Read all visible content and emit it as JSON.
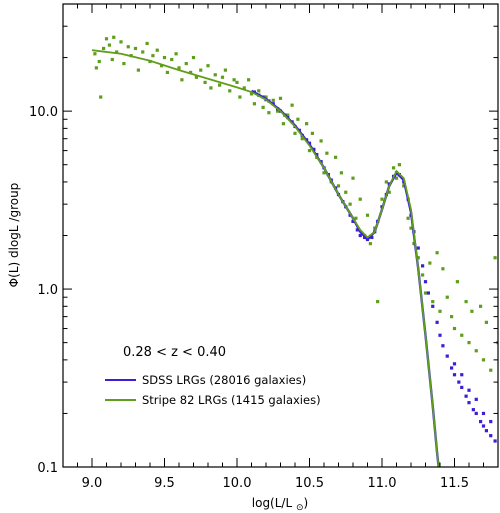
{
  "chart_data": {
    "type": "scatter",
    "xlabel": "log(L/L⊙)",
    "ylabel": "Φ(L) dlogL /group",
    "xlim": [
      8.8,
      11.8
    ],
    "ylim": [
      0.1,
      40
    ],
    "yscale": "log",
    "x_ticks": [
      9.0,
      9.5,
      10.0,
      10.5,
      11.0,
      11.5
    ],
    "x_tick_labels": [
      "9.0",
      "9.5",
      "10.0",
      "10.5",
      "11.0",
      "11.5"
    ],
    "y_ticks": [
      0.1,
      1.0,
      10.0
    ],
    "y_tick_labels": [
      "0.1",
      "1.0",
      "10.0"
    ],
    "annotation": "0.28 < z < 0.40",
    "grid": false,
    "legend_position": "lower-left",
    "colors": {
      "sdss": "#3a1fd6",
      "stripe82": "#5f9e1c"
    },
    "series": [
      {
        "name": "SDSS LRGs (28016 galaxies)",
        "color": "#3a1fd6",
        "points": [
          [
            10.12,
            12.8
          ],
          [
            10.15,
            12.3
          ],
          [
            10.18,
            12.0
          ],
          [
            10.2,
            11.6
          ],
          [
            10.22,
            11.4
          ],
          [
            10.25,
            11.0
          ],
          [
            10.28,
            10.3
          ],
          [
            10.3,
            10.0
          ],
          [
            10.33,
            9.5
          ],
          [
            10.35,
            9.2
          ],
          [
            10.38,
            8.7
          ],
          [
            10.4,
            8.2
          ],
          [
            10.43,
            7.8
          ],
          [
            10.45,
            7.3
          ],
          [
            10.48,
            6.9
          ],
          [
            10.5,
            6.6
          ],
          [
            10.53,
            6.1
          ],
          [
            10.55,
            5.7
          ],
          [
            10.58,
            5.2
          ],
          [
            10.6,
            4.8
          ],
          [
            10.63,
            4.4
          ],
          [
            10.65,
            4.1
          ],
          [
            10.68,
            3.7
          ],
          [
            10.7,
            3.4
          ],
          [
            10.73,
            3.1
          ],
          [
            10.75,
            2.9
          ],
          [
            10.78,
            2.6
          ],
          [
            10.8,
            2.4
          ],
          [
            10.83,
            2.15
          ],
          [
            10.85,
            2.0
          ],
          [
            10.88,
            1.95
          ],
          [
            10.9,
            1.9
          ],
          [
            10.93,
            1.95
          ],
          [
            10.95,
            2.1
          ],
          [
            10.97,
            2.4
          ],
          [
            11.0,
            2.9
          ],
          [
            11.03,
            3.4
          ],
          [
            11.05,
            3.9
          ],
          [
            11.08,
            4.3
          ],
          [
            11.1,
            4.5
          ],
          [
            11.12,
            4.4
          ],
          [
            11.15,
            4.0
          ],
          [
            11.18,
            3.2
          ],
          [
            11.2,
            2.6
          ],
          [
            11.22,
            2.1
          ],
          [
            11.25,
            1.7
          ],
          [
            11.28,
            1.35
          ],
          [
            11.3,
            1.1
          ],
          [
            11.32,
            0.95
          ],
          [
            11.35,
            0.8
          ],
          [
            11.38,
            0.65
          ],
          [
            11.4,
            0.55
          ],
          [
            11.42,
            0.48
          ],
          [
            11.45,
            0.42
          ],
          [
            11.48,
            0.36
          ],
          [
            11.5,
            0.33
          ],
          [
            11.53,
            0.3
          ],
          [
            11.55,
            0.28
          ],
          [
            11.58,
            0.25
          ],
          [
            11.6,
            0.23
          ],
          [
            11.63,
            0.21
          ],
          [
            11.65,
            0.2
          ],
          [
            11.68,
            0.18
          ],
          [
            11.7,
            0.17
          ],
          [
            11.72,
            0.16
          ],
          [
            11.75,
            0.15
          ],
          [
            11.78,
            0.14
          ],
          [
            11.5,
            0.38
          ],
          [
            11.55,
            0.33
          ],
          [
            11.6,
            0.27
          ],
          [
            11.65,
            0.24
          ],
          [
            11.7,
            0.2
          ],
          [
            11.75,
            0.18
          ]
        ],
        "fit": [
          [
            10.1,
            13.0
          ],
          [
            10.2,
            11.7
          ],
          [
            10.3,
            10.1
          ],
          [
            10.4,
            8.3
          ],
          [
            10.5,
            6.5
          ],
          [
            10.6,
            4.8
          ],
          [
            10.7,
            3.4
          ],
          [
            10.8,
            2.5
          ],
          [
            10.85,
            2.1
          ],
          [
            10.9,
            1.9
          ],
          [
            10.95,
            2.1
          ],
          [
            11.0,
            2.8
          ],
          [
            11.05,
            3.8
          ],
          [
            11.1,
            4.5
          ],
          [
            11.15,
            4.1
          ],
          [
            11.2,
            2.7
          ],
          [
            11.25,
            1.3
          ],
          [
            11.3,
            0.55
          ],
          [
            11.35,
            0.22
          ],
          [
            11.38,
            0.12
          ],
          [
            11.4,
            0.085
          ]
        ]
      },
      {
        "name": "Stripe 82 LRGs (1415 galaxies)",
        "color": "#5f9e1c",
        "points": [
          [
            9.02,
            21.0
          ],
          [
            9.03,
            17.5
          ],
          [
            9.05,
            19.0
          ],
          [
            9.06,
            12.0
          ],
          [
            9.08,
            22.5
          ],
          [
            9.1,
            25.5
          ],
          [
            9.12,
            23.5
          ],
          [
            9.14,
            19.5
          ],
          [
            9.15,
            26.0
          ],
          [
            9.17,
            21.5
          ],
          [
            9.2,
            24.5
          ],
          [
            9.22,
            18.5
          ],
          [
            9.25,
            23.0
          ],
          [
            9.27,
            20.5
          ],
          [
            9.3,
            22.5
          ],
          [
            9.32,
            17.0
          ],
          [
            9.35,
            21.5
          ],
          [
            9.38,
            24.0
          ],
          [
            9.4,
            19.0
          ],
          [
            9.42,
            20.5
          ],
          [
            9.45,
            22.0
          ],
          [
            9.48,
            18.0
          ],
          [
            9.5,
            20.0
          ],
          [
            9.52,
            16.5
          ],
          [
            9.55,
            19.5
          ],
          [
            9.58,
            21.0
          ],
          [
            9.6,
            17.5
          ],
          [
            9.62,
            15.0
          ],
          [
            9.65,
            18.5
          ],
          [
            9.68,
            16.5
          ],
          [
            9.7,
            20.0
          ],
          [
            9.72,
            15.5
          ],
          [
            9.75,
            17.0
          ],
          [
            9.78,
            14.5
          ],
          [
            9.8,
            18.0
          ],
          [
            9.82,
            13.5
          ],
          [
            9.85,
            16.0
          ],
          [
            9.88,
            14.0
          ],
          [
            9.9,
            15.5
          ],
          [
            9.92,
            17.0
          ],
          [
            9.95,
            13.0
          ],
          [
            9.98,
            15.0
          ],
          [
            10.0,
            14.5
          ],
          [
            10.02,
            12.0
          ],
          [
            10.05,
            13.5
          ],
          [
            10.08,
            15.0
          ],
          [
            10.1,
            12.5
          ],
          [
            10.12,
            11.0
          ],
          [
            10.15,
            13.0
          ],
          [
            10.18,
            10.5
          ],
          [
            10.2,
            12.0
          ],
          [
            10.22,
            9.8
          ],
          [
            10.25,
            11.5
          ],
          [
            10.28,
            10.0
          ],
          [
            10.3,
            11.8
          ],
          [
            10.32,
            8.5
          ],
          [
            10.35,
            9.5
          ],
          [
            10.38,
            10.8
          ],
          [
            10.4,
            7.5
          ],
          [
            10.42,
            9.0
          ],
          [
            10.45,
            7.0
          ],
          [
            10.48,
            8.5
          ],
          [
            10.5,
            6.0
          ],
          [
            10.52,
            7.5
          ],
          [
            10.55,
            5.5
          ],
          [
            10.58,
            6.8
          ],
          [
            10.6,
            4.5
          ],
          [
            10.62,
            5.8
          ],
          [
            10.65,
            4.0
          ],
          [
            10.68,
            5.5
          ],
          [
            10.7,
            3.8
          ],
          [
            10.72,
            4.5
          ],
          [
            10.75,
            3.5
          ],
          [
            10.78,
            3.0
          ],
          [
            10.8,
            4.2
          ],
          [
            10.82,
            2.5
          ],
          [
            10.85,
            3.2
          ],
          [
            10.88,
            2.0
          ],
          [
            10.9,
            2.6
          ],
          [
            10.92,
            1.8
          ],
          [
            10.95,
            2.2
          ],
          [
            10.97,
            0.85
          ],
          [
            11.0,
            3.2
          ],
          [
            11.03,
            4.0
          ],
          [
            11.05,
            3.5
          ],
          [
            11.08,
            4.8
          ],
          [
            11.1,
            4.2
          ],
          [
            11.12,
            5.0
          ],
          [
            11.15,
            3.8
          ],
          [
            11.18,
            2.5
          ],
          [
            11.2,
            2.2
          ],
          [
            11.22,
            1.8
          ],
          [
            11.25,
            1.5
          ],
          [
            11.28,
            1.2
          ],
          [
            11.3,
            0.95
          ],
          [
            11.33,
            1.4
          ],
          [
            11.35,
            0.85
          ],
          [
            11.38,
            1.6
          ],
          [
            11.4,
            0.75
          ],
          [
            11.42,
            1.3
          ],
          [
            11.45,
            0.9
          ],
          [
            11.48,
            0.7
          ],
          [
            11.5,
            0.6
          ],
          [
            11.52,
            1.1
          ],
          [
            11.55,
            0.55
          ],
          [
            11.58,
            0.85
          ],
          [
            11.6,
            0.5
          ],
          [
            11.62,
            0.75
          ],
          [
            11.65,
            0.45
          ],
          [
            11.68,
            0.8
          ],
          [
            11.7,
            0.4
          ],
          [
            11.72,
            0.65
          ],
          [
            11.75,
            0.35
          ],
          [
            11.78,
            1.5
          ],
          [
            11.8,
            0.5
          ]
        ],
        "fit": [
          [
            9.0,
            22.0
          ],
          [
            9.2,
            21.0
          ],
          [
            9.4,
            19.2
          ],
          [
            9.6,
            17.0
          ],
          [
            9.8,
            15.2
          ],
          [
            10.0,
            13.6
          ],
          [
            10.1,
            12.8
          ],
          [
            10.2,
            11.6
          ],
          [
            10.3,
            10.0
          ],
          [
            10.4,
            8.2
          ],
          [
            10.5,
            6.4
          ],
          [
            10.6,
            4.8
          ],
          [
            10.7,
            3.4
          ],
          [
            10.8,
            2.5
          ],
          [
            10.85,
            2.15
          ],
          [
            10.9,
            1.95
          ],
          [
            10.95,
            2.1
          ],
          [
            11.0,
            2.8
          ],
          [
            11.05,
            3.8
          ],
          [
            11.1,
            4.6
          ],
          [
            11.15,
            4.2
          ],
          [
            11.2,
            2.8
          ],
          [
            11.25,
            1.3
          ],
          [
            11.3,
            0.55
          ],
          [
            11.35,
            0.22
          ],
          [
            11.38,
            0.12
          ],
          [
            11.4,
            0.085
          ]
        ]
      }
    ]
  }
}
